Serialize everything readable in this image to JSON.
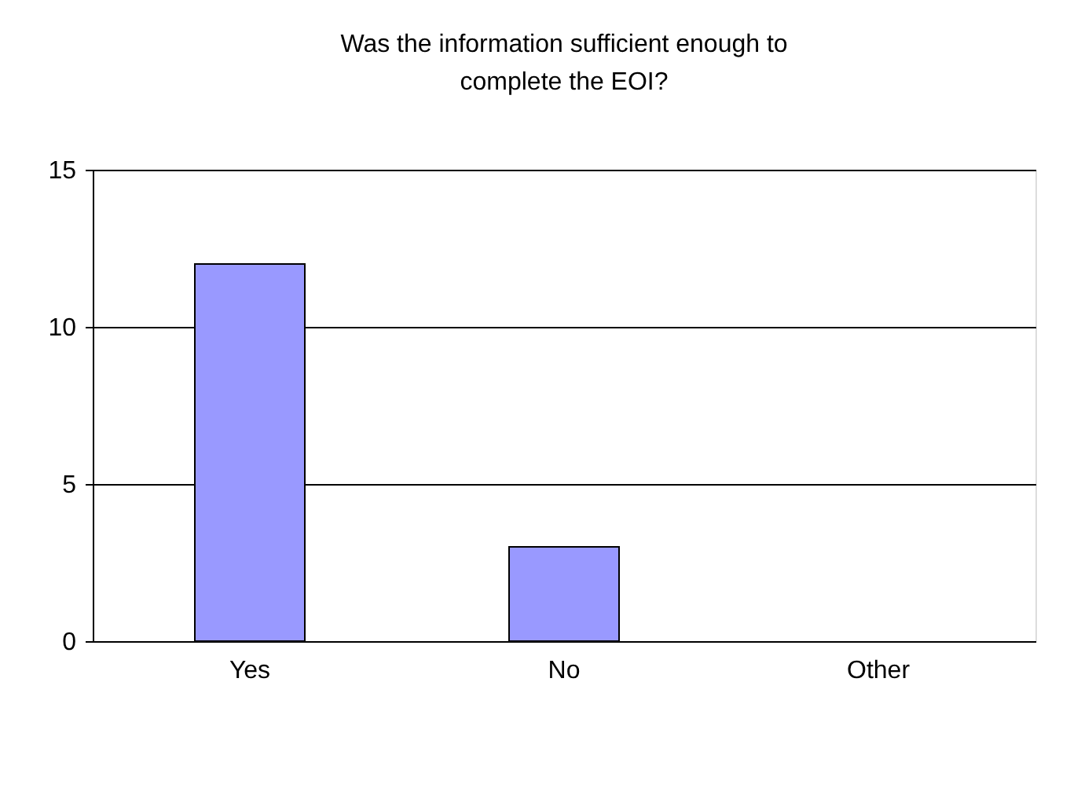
{
  "chart_data": {
    "type": "bar",
    "title": "Was the information sufficient enough to complete the EOI?",
    "categories": [
      "Yes",
      "No",
      "Other"
    ],
    "values": [
      12,
      3,
      0
    ],
    "color": "#9999ff",
    "ylim": [
      0,
      15
    ],
    "yticks": [
      0,
      5,
      10,
      15
    ],
    "grid": "y",
    "legend": false
  }
}
